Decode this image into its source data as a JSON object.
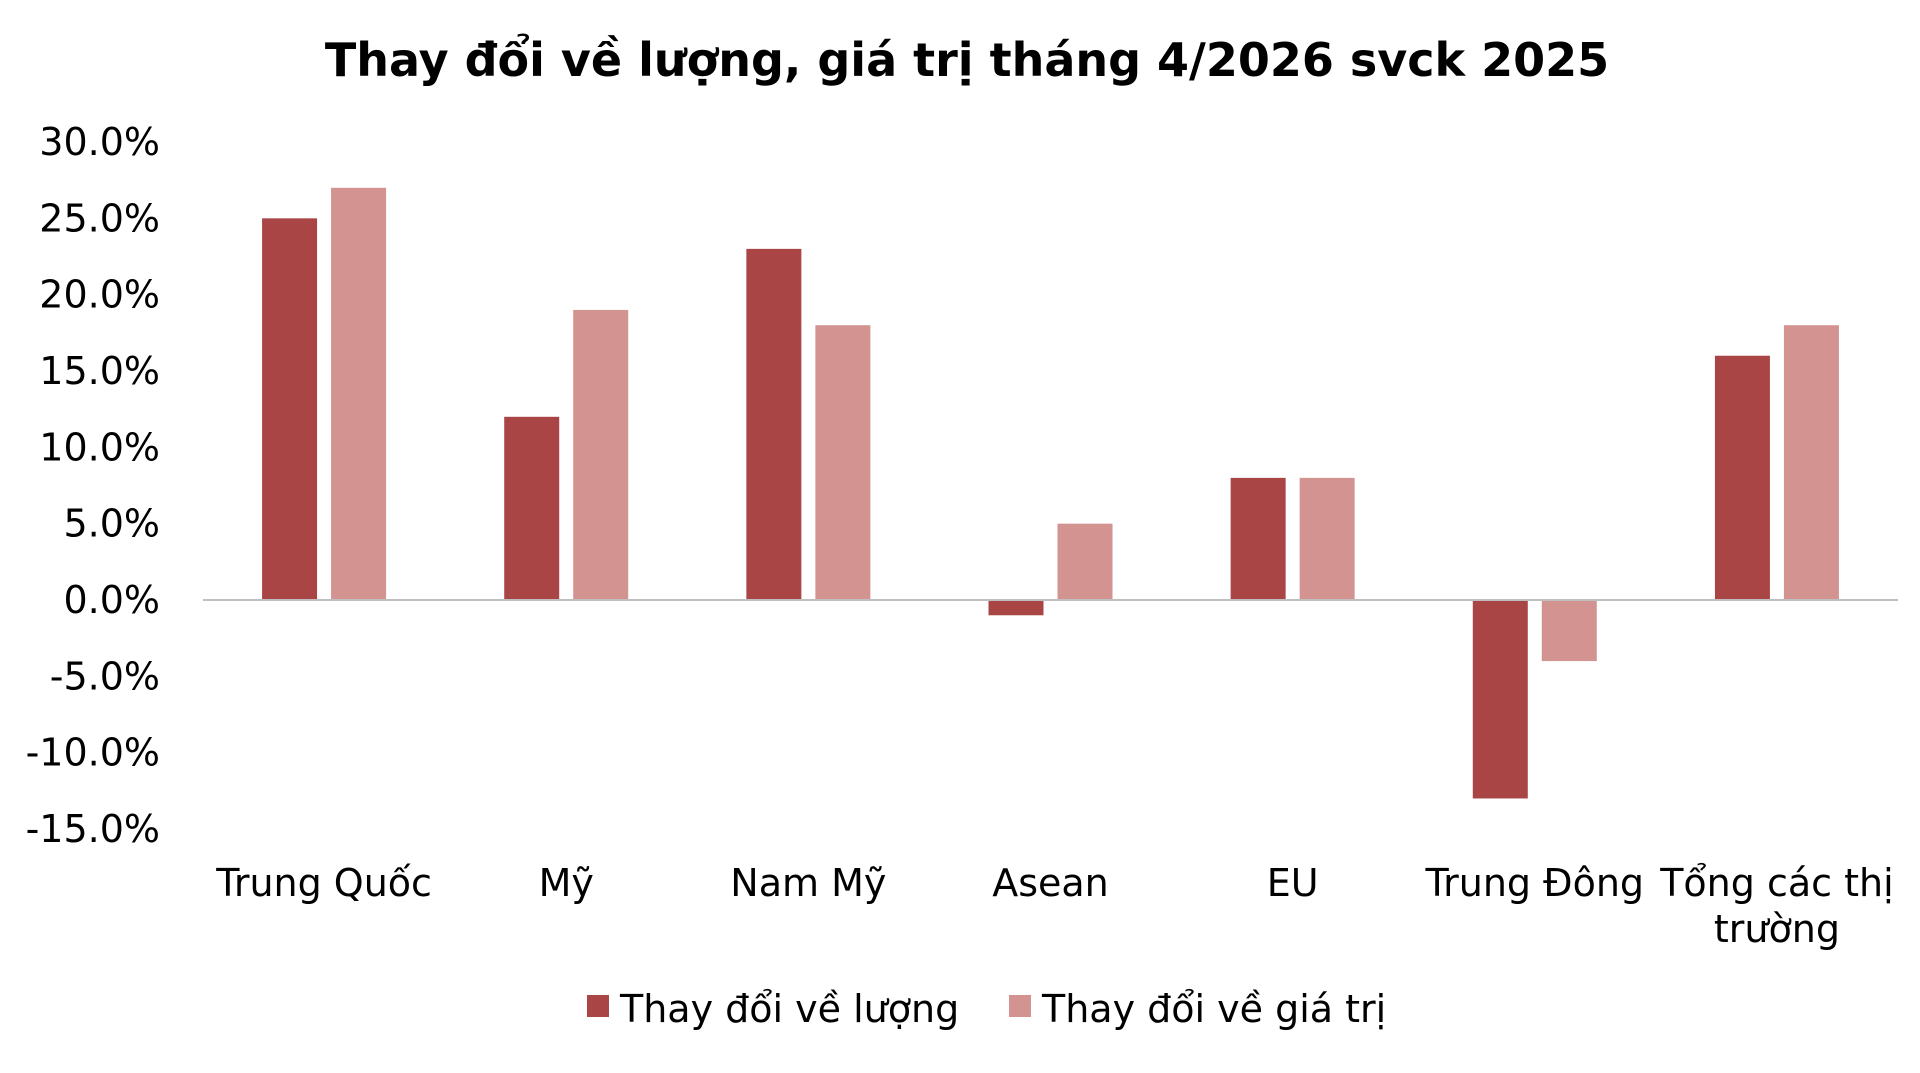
{
  "chart_data": {
    "type": "bar",
    "title": "Thay đổi về lượng, giá trị tháng 4/2026 svck 2025",
    "xlabel": "",
    "ylabel": "",
    "categories": [
      [
        "Trung Quốc"
      ],
      [
        "Mỹ"
      ],
      [
        "Nam Mỹ"
      ],
      [
        "Asean"
      ],
      [
        "EU"
      ],
      [
        "Trung Đông"
      ],
      [
        "Tổng các thị",
        "trường"
      ]
    ],
    "series": [
      {
        "name": "Thay đổi về lượng",
        "color": "#A94545",
        "values": [
          25.0,
          12.0,
          23.0,
          -1.0,
          8.0,
          -13.0,
          16.0
        ]
      },
      {
        "name": "Thay đổi về giá trị",
        "color": "#D29391",
        "values": [
          27.0,
          19.0,
          18.0,
          5.0,
          8.0,
          -4.0,
          18.0
        ]
      }
    ],
    "ylim": [
      -15,
      30
    ],
    "yticks": [
      "30.0%",
      "25.0%",
      "20.0%",
      "15.0%",
      "10.0%",
      "5.0%",
      "0.0%",
      "-5.0%",
      "-10.0%",
      "-15.0%"
    ],
    "ytick_values": [
      30,
      25,
      20,
      15,
      10,
      5,
      0,
      -5,
      -10,
      -15
    ],
    "grid": false,
    "legend_position": "bottom"
  }
}
